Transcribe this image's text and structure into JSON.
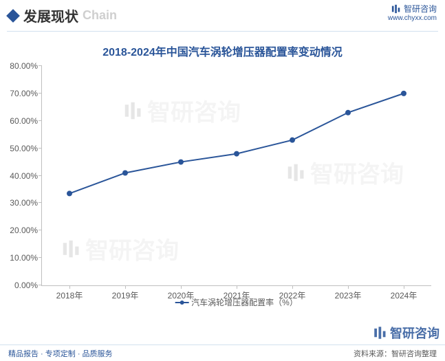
{
  "header": {
    "title_cn": "发展现状",
    "title_en": "Chain"
  },
  "brand": {
    "name": "智研咨询",
    "url": "www.chyxx.com"
  },
  "chart": {
    "type": "line",
    "title": "2018-2024年中国汽车涡轮增压器配置率变动情况",
    "x_categories": [
      "2018年",
      "2019年",
      "2020年",
      "2021年",
      "2022年",
      "2023年",
      "2024年"
    ],
    "series_name": "汽车涡轮增压器配置率（%）",
    "values": [
      33.5,
      41.0,
      45.0,
      48.0,
      53.0,
      63.0,
      70.0
    ],
    "line_color": "#2a5599",
    "marker_color": "#2a5599",
    "marker_radius": 4,
    "line_width": 2,
    "ylim": [
      0,
      80
    ],
    "ytick_step": 10,
    "ytick_format_suffix": ".00%",
    "background_color": "#ffffff",
    "axis_color": "#bfbfbf",
    "label_color": "#595959",
    "label_fontsize": 12,
    "title_color": "#2a5599",
    "title_fontsize": 16
  },
  "watermark_text": "智研咨询",
  "footer": {
    "left": "精品报告 · 专项定制 · 品质服务",
    "right": "资料来源：智研咨询整理"
  }
}
